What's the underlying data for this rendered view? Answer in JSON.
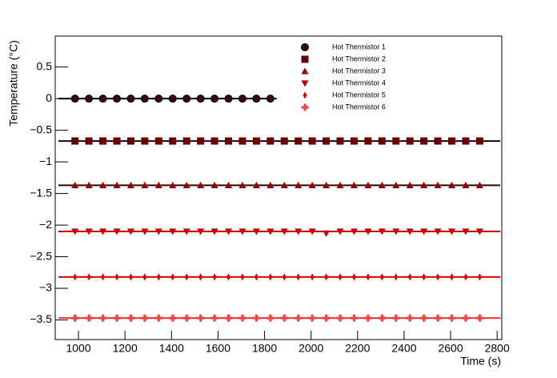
{
  "chart_data": {
    "type": "scatter",
    "x_label": "Time (s)",
    "y_label": "Temperature (°C)",
    "xlim": [
      900,
      2820
    ],
    "ylim": [
      -3.81,
      0.99
    ],
    "xticks": [
      1000,
      1200,
      1400,
      1600,
      1800,
      2000,
      2200,
      2400,
      2600,
      2800
    ],
    "yticks": [
      {
        "value": -3.5,
        "label": "−3.5"
      },
      {
        "value": -3,
        "label": "−3"
      },
      {
        "value": -2.5,
        "label": "−2.5"
      },
      {
        "value": -2,
        "label": "−2"
      },
      {
        "value": -1.5,
        "label": "−1.5"
      },
      {
        "value": -1,
        "label": "−1"
      },
      {
        "value": -0.5,
        "label": "−0.5"
      },
      0,
      0.5
    ],
    "x": [
      985,
      1045,
      1105,
      1165,
      1225,
      1285,
      1345,
      1405,
      1465,
      1525,
      1585,
      1645,
      1705,
      1765,
      1825,
      1885,
      1945,
      2005,
      2065,
      2125,
      2185,
      2245,
      2305,
      2365,
      2425,
      2485,
      2545,
      2605,
      2665,
      2725
    ],
    "series": [
      {
        "name": "Hot Thermistor 1",
        "color": "#3a0a0a",
        "marker": "circle",
        "fit": 0,
        "fit_color": "#000000",
        "values": [
          0,
          0,
          0,
          0,
          0,
          0,
          0,
          0,
          0,
          0,
          0,
          0,
          0,
          0,
          0,
          null,
          null,
          null,
          null,
          null,
          null,
          null,
          null,
          null,
          null,
          null,
          null,
          null,
          null,
          null
        ]
      },
      {
        "name": "Hot Thermistor 2",
        "color": "#6b0000",
        "marker": "square",
        "fit": -0.67,
        "fit_color": "#200000",
        "values": [
          -0.67,
          -0.67,
          -0.67,
          -0.67,
          -0.67,
          -0.67,
          -0.67,
          -0.67,
          -0.67,
          -0.67,
          -0.67,
          -0.67,
          -0.67,
          -0.67,
          -0.67,
          -0.67,
          -0.67,
          -0.67,
          -0.67,
          -0.67,
          -0.67,
          -0.67,
          -0.67,
          -0.67,
          -0.67,
          -0.67,
          -0.67,
          -0.67,
          -0.67,
          -0.67
        ]
      },
      {
        "name": "Hot Thermistor 3",
        "color": "#990000",
        "marker": "triangle",
        "fit": -1.37,
        "fit_color": "#300000",
        "values": [
          -1.37,
          -1.37,
          -1.37,
          -1.37,
          -1.37,
          -1.37,
          -1.37,
          -1.37,
          -1.37,
          -1.37,
          -1.37,
          -1.37,
          -1.37,
          -1.37,
          -1.37,
          -1.37,
          -1.37,
          -1.37,
          -1.37,
          -1.37,
          -1.37,
          -1.37,
          -1.37,
          -1.37,
          -1.37,
          -1.37,
          -1.37,
          -1.37,
          -1.37,
          -1.37
        ]
      },
      {
        "name": "Hot Thermistor 4",
        "color": "#cc0000",
        "marker": "triangle-down",
        "fit": -2.1,
        "fit_color": "#cc0000",
        "values": [
          -2.1,
          -2.1,
          -2.1,
          -2.1,
          -2.1,
          -2.1,
          -2.1,
          -2.1,
          -2.1,
          -2.1,
          -2.1,
          -2.1,
          -2.1,
          -2.1,
          -2.1,
          -2.1,
          -2.1,
          -2.1,
          -2.13,
          -2.1,
          -2.1,
          -2.1,
          -2.1,
          -2.1,
          -2.1,
          -2.1,
          -2.1,
          -2.1,
          -2.1,
          -2.1
        ]
      },
      {
        "name": "Hot Thermistor 5",
        "color": "#e00000",
        "marker": "diamond",
        "fit": -2.82,
        "fit_color": "#e00000",
        "values": [
          -2.82,
          -2.82,
          -2.82,
          -2.82,
          -2.82,
          -2.82,
          -2.82,
          -2.82,
          -2.82,
          -2.82,
          -2.82,
          -2.82,
          -2.82,
          -2.82,
          -2.82,
          -2.82,
          -2.82,
          -2.82,
          -2.82,
          -2.82,
          -2.82,
          -2.82,
          -2.82,
          -2.82,
          -2.82,
          -2.82,
          -2.82,
          -2.82,
          -2.82,
          -2.82
        ]
      },
      {
        "name": "Hot Thermistor 6",
        "color": "#ff4040",
        "marker": "cross",
        "fit": -3.47,
        "fit_color": "#ff3030",
        "values": [
          -3.47,
          -3.47,
          -3.47,
          -3.47,
          -3.47,
          -3.47,
          -3.47,
          -3.47,
          -3.47,
          -3.47,
          -3.47,
          -3.47,
          -3.47,
          -3.47,
          -3.47,
          -3.47,
          -3.47,
          -3.47,
          -3.47,
          -3.47,
          -3.47,
          -3.47,
          -3.47,
          -3.47,
          -3.47,
          -3.47,
          -3.47,
          -3.47,
          -3.47,
          -3.47
        ]
      }
    ]
  }
}
